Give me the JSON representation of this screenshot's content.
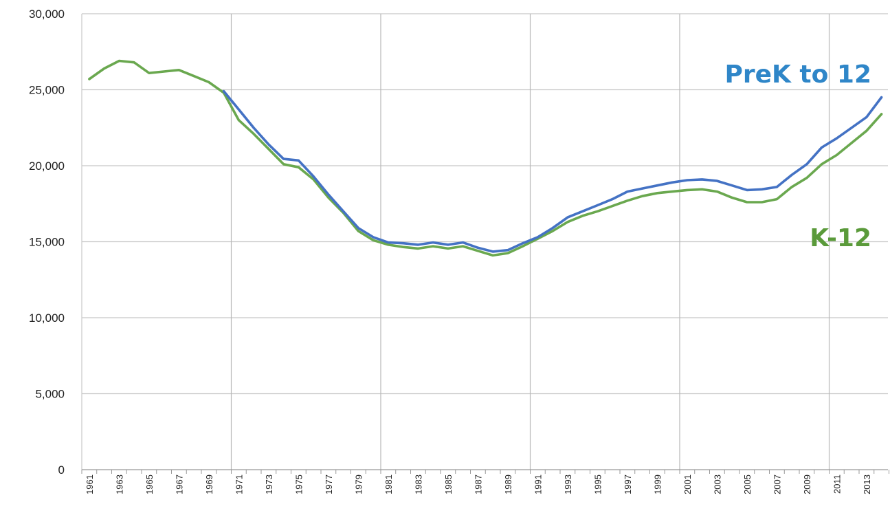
{
  "chart_data": {
    "type": "line",
    "title": "",
    "xlabel": "",
    "ylabel": "",
    "ylim": [
      0,
      30000
    ],
    "xlim": [
      1961,
      2014
    ],
    "grid": true,
    "legend": "direct labels at right end of lines",
    "y_ticks": [
      "30,000",
      "25,000",
      "20,000",
      "15,000",
      "10,000",
      "5,000",
      "0"
    ],
    "y_tick_values": [
      30000,
      25000,
      20000,
      15000,
      10000,
      5000,
      0
    ],
    "x_tick_labels": [
      "1961",
      "1963",
      "1965",
      "1967",
      "1969",
      "1971",
      "1973",
      "1975",
      "1977",
      "1979",
      "1981",
      "1983",
      "1985",
      "1987",
      "1989",
      "1991",
      "1993",
      "1995",
      "1997",
      "1999",
      "2001",
      "2003",
      "2005",
      "2007",
      "2009",
      "2011",
      "2013"
    ],
    "series": [
      {
        "name": "K-12",
        "color": "#6aa84f",
        "label_color": "#5a9a3a",
        "x": [
          1961,
          1962,
          1963,
          1964,
          1965,
          1966,
          1967,
          1968,
          1969,
          1970,
          1971,
          1972,
          1973,
          1974,
          1975,
          1976,
          1977,
          1978,
          1979,
          1980,
          1981,
          1982,
          1983,
          1984,
          1985,
          1986,
          1987,
          1988,
          1989,
          1990,
          1991,
          1992,
          1993,
          1994,
          1995,
          1996,
          1997,
          1998,
          1999,
          2000,
          2001,
          2002,
          2003,
          2004,
          2005,
          2006,
          2007,
          2008,
          2009,
          2010,
          2011,
          2012,
          2013,
          2014
        ],
        "values": [
          25700,
          26400,
          26900,
          26800,
          26100,
          26200,
          26300,
          25900,
          25500,
          24800,
          23000,
          22100,
          21100,
          20100,
          19900,
          19100,
          17900,
          16900,
          15700,
          15100,
          14800,
          14650,
          14550,
          14700,
          14550,
          14700,
          14400,
          14100,
          14250,
          14700,
          15200,
          15700,
          16300,
          16700,
          17000,
          17350,
          17700,
          18000,
          18200,
          18300,
          18400,
          18450,
          18300,
          17900,
          17600,
          17600,
          17800,
          18600,
          19200,
          20100,
          20700,
          21500,
          22300,
          23400
        ]
      },
      {
        "name": "PreK to 12",
        "color": "#4472c4",
        "label_color": "#2f86c8",
        "x": [
          1970,
          1971,
          1972,
          1973,
          1974,
          1975,
          1976,
          1977,
          1978,
          1979,
          1980,
          1981,
          1982,
          1983,
          1984,
          1985,
          1986,
          1987,
          1988,
          1989,
          1990,
          1991,
          1992,
          1993,
          1994,
          1995,
          1996,
          1997,
          1998,
          1999,
          2000,
          2001,
          2002,
          2003,
          2004,
          2005,
          2006,
          2007,
          2008,
          2009,
          2010,
          2011,
          2012,
          2013,
          2014
        ],
        "values": [
          24900,
          23700,
          22500,
          21400,
          20450,
          20350,
          19300,
          18100,
          17000,
          15900,
          15300,
          14950,
          14900,
          14800,
          14950,
          14800,
          14950,
          14600,
          14350,
          14450,
          14900,
          15300,
          15900,
          16600,
          17000,
          17400,
          17800,
          18300,
          18500,
          18700,
          18900,
          19050,
          19100,
          19000,
          18700,
          18400,
          18450,
          18600,
          19400,
          20100,
          21200,
          21800,
          22500,
          23200,
          24500
        ]
      }
    ]
  }
}
